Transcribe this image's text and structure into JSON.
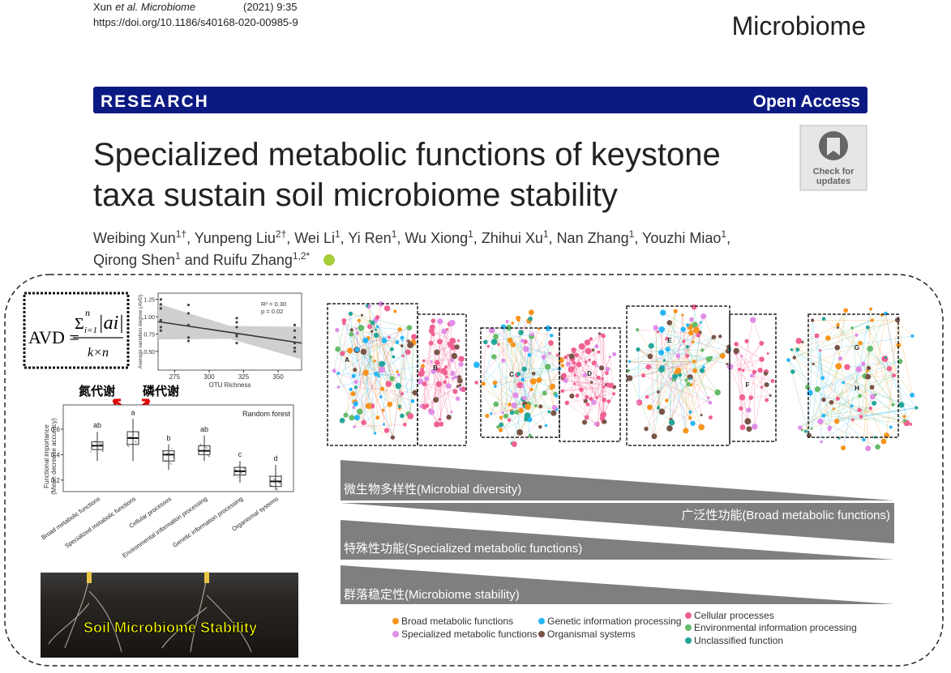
{
  "header": {
    "author": "Xun",
    "journal": "et al. Microbiome",
    "citation": "(2021) 9:35",
    "doi": "https://doi.org/10.1186/s40168-020-00985-9",
    "logo": "Microbiome"
  },
  "banner": {
    "left": "RESEARCH",
    "right": "Open Access"
  },
  "title_lines": [
    "Specialized metabolic functions of keystone",
    "taxa sustain soil microbiome stability"
  ],
  "check_badge": [
    "Check for",
    "updates"
  ],
  "author_lines": [
    [
      {
        "name": "Weibing Xun",
        "sup": "1†",
        "sep": ", "
      },
      {
        "name": "Yunpeng Liu",
        "sup": "2†",
        "sep": ", "
      },
      {
        "name": "Wei Li",
        "sup": "1",
        "sep": ", "
      },
      {
        "name": "Yi Ren",
        "sup": "1",
        "sep": ", "
      },
      {
        "name": "Wu Xiong",
        "sup": "1",
        "sep": ", "
      },
      {
        "name": "Zhihui Xu",
        "sup": "1",
        "sep": ", "
      },
      {
        "name": "Nan Zhang",
        "sup": "1",
        "sep": ", "
      },
      {
        "name": "Youzhi Miao",
        "sup": "1",
        "sep": ","
      }
    ],
    [
      {
        "name": "Qirong Shen",
        "sup": "1",
        "sep": " and "
      },
      {
        "name": "Ruifu Zhang",
        "sup": "1,2*"
      }
    ]
  ],
  "figure": {
    "formula": {
      "lhs": "AVD =",
      "sum": "Σ",
      "sub": "i=1",
      "sup": "n",
      "abs": "|ai|",
      "denominator": "k×n"
    },
    "scatter": {
      "type": "scatter",
      "x_label": "OTU Richness",
      "y_label": "Average variation degree (AVD)",
      "stats": [
        "R² = 0.30",
        "p = 0.02"
      ],
      "x": [
        265,
        265,
        265,
        265,
        265,
        265,
        285,
        285,
        285,
        285,
        285,
        320,
        320,
        320,
        320,
        320,
        320,
        362,
        362,
        362,
        362,
        362,
        362
      ],
      "y": [
        1.25,
        1.18,
        1.12,
        0.95,
        0.85,
        0.8,
        1.17,
        1.05,
        0.88,
        0.7,
        0.65,
        0.98,
        0.92,
        0.85,
        0.75,
        0.72,
        0.62,
        0.88,
        0.8,
        0.7,
        0.62,
        0.55,
        0.5
      ],
      "trend": {
        "x": [
          263,
          367
        ],
        "y": [
          0.93,
          0.62
        ]
      },
      "xlim": [
        263,
        367
      ],
      "ylim": [
        0.23,
        1.34
      ],
      "xticks": [
        275,
        300,
        325,
        350
      ],
      "yticks": [
        {
          "value": 0.5,
          "label": "0.50"
        },
        {
          "value": 0.75,
          "label": "0.75"
        },
        {
          "value": 1,
          "label": "1.00"
        },
        {
          "value": 1.25,
          "label": "1.25"
        }
      ]
    },
    "metabolism_labels": [
      "氮代谢",
      "磷代谢"
    ],
    "boxplot": {
      "type": "box",
      "title": "Random forest",
      "y_label": [
        "Functional importance",
        "(Mean decrease accuracy)"
      ],
      "categories": [
        "Broad metabolic functions",
        "Specialized metabolic functions",
        "Cellular processes",
        "Environmental information processing",
        "Genetic information processing",
        "Organismal systems"
      ],
      "letters": [
        "ab",
        "a",
        "b",
        "ab",
        "c",
        "d"
      ],
      "boxes": [
        {
          "low": 0.35,
          "q1": 0.44,
          "median": 0.47,
          "q3": 0.5,
          "high": 0.58
        },
        {
          "low": 0.35,
          "q1": 0.48,
          "median": 0.53,
          "q3": 0.58,
          "high": 0.68
        },
        {
          "low": 0.28,
          "q1": 0.35,
          "median": 0.4,
          "q3": 0.43,
          "high": 0.48
        },
        {
          "low": 0.35,
          "q1": 0.4,
          "median": 0.43,
          "q3": 0.47,
          "high": 0.55
        },
        {
          "low": 0.18,
          "q1": 0.24,
          "median": 0.27,
          "q3": 0.3,
          "high": 0.35
        },
        {
          "low": 0.12,
          "q1": 0.15,
          "median": 0.19,
          "q3": 0.23,
          "high": 0.32
        }
      ],
      "ylim": [
        0.11,
        0.79
      ],
      "yticks": [
        0.2,
        0.4,
        0.6
      ]
    },
    "photo_caption": "Soil Microbiome Stability",
    "network_labels": [
      "A",
      "B",
      "C",
      "D",
      "E",
      "F",
      "G",
      "H"
    ],
    "gradients": [
      "微生物多样性(Microbial diversity)",
      "广泛性功能(Broad metabolic functions)",
      "特殊性功能(Specialized metabolic functions)",
      "群落稳定性(Microbiome stability)"
    ],
    "legend": [
      {
        "name": "Broad metabolic functions",
        "color": "#f7941d"
      },
      {
        "name": "Specialized metabolic functions",
        "color": "#e08ee8"
      },
      {
        "name": "Genetic information processing",
        "color": "#29b6f6"
      },
      {
        "name": "Organismal systems",
        "color": "#795548"
      },
      {
        "name": "Cellular processes",
        "color": "#f06292"
      },
      {
        "name": "Environmental information processing",
        "color": "#66bb6a"
      },
      {
        "name": "Unclassified function",
        "color": "#26a69a"
      }
    ]
  }
}
